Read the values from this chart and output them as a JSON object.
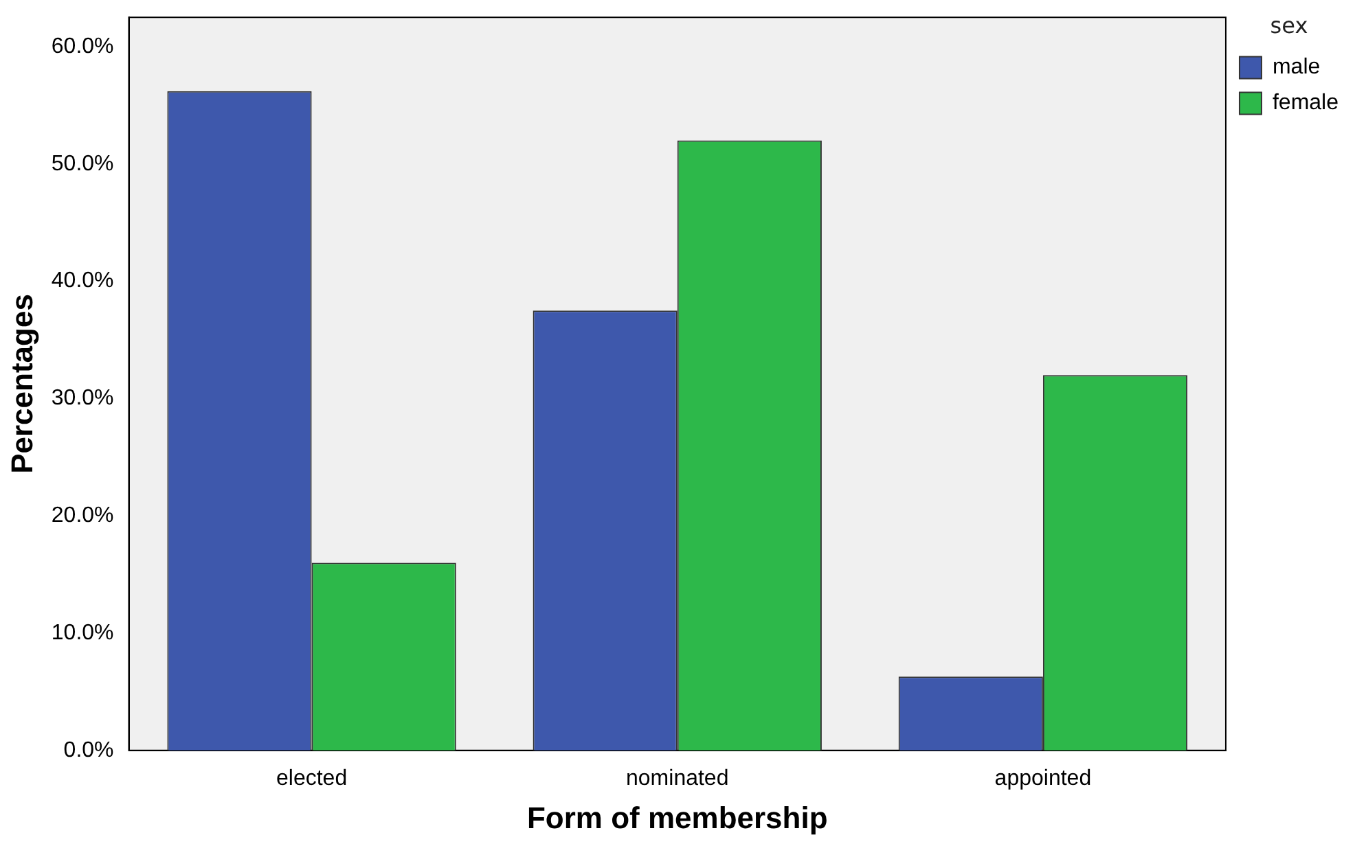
{
  "chart_data": {
    "type": "bar",
    "xlabel": "Form of membership",
    "ylabel": "Percentages",
    "legend_title": "sex",
    "legend": "top right",
    "grid": false,
    "categories": [
      "elected",
      "nominated",
      "appointed"
    ],
    "series": [
      {
        "name": "male",
        "color": "#3e58ac",
        "values": [
          56.2,
          37.5,
          6.3
        ]
      },
      {
        "name": "female",
        "color": "#2db84a",
        "values": [
          16,
          52,
          32
        ]
      }
    ],
    "ylim": [
      0,
      62.5
    ],
    "yticks": [
      {
        "value": 0,
        "label": "0.0%"
      },
      {
        "value": 10,
        "label": "10.0%"
      },
      {
        "value": 20,
        "label": "20.0%"
      },
      {
        "value": 30,
        "label": "30.0%"
      },
      {
        "value": 40,
        "label": "40.0%"
      },
      {
        "value": 50,
        "label": "50.0%"
      },
      {
        "value": 60,
        "label": "60.0%"
      }
    ]
  }
}
